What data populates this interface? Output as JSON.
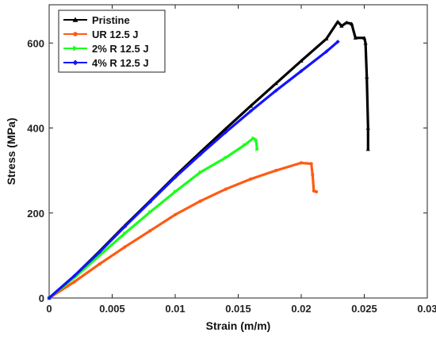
{
  "chart_data": {
    "type": "line",
    "xlabel": "Strain (m/m)",
    "ylabel": "Stress (MPa)",
    "xlim": [
      0,
      0.03
    ],
    "ylim": [
      0,
      690
    ],
    "xticks": [
      0,
      0.005,
      0.01,
      0.015,
      0.02,
      0.025,
      0.03
    ],
    "xtick_labels": [
      "0",
      "0.005",
      "0.01",
      "0.015",
      "0.02",
      "0.025",
      "0.03"
    ],
    "yticks": [
      0,
      200,
      400,
      600
    ],
    "ytick_labels": [
      "0",
      "200",
      "400",
      "600"
    ],
    "grid": false,
    "legend_position": "top-left",
    "series": [
      {
        "name": "Pristine",
        "color": "#000000",
        "marker": "triangle-up",
        "points": [
          [
            0,
            0
          ],
          [
            0.002,
            52
          ],
          [
            0.004,
            110
          ],
          [
            0.006,
            170
          ],
          [
            0.008,
            228
          ],
          [
            0.01,
            287
          ],
          [
            0.012,
            343
          ],
          [
            0.014,
            398
          ],
          [
            0.016,
            452
          ],
          [
            0.018,
            505
          ],
          [
            0.02,
            558
          ],
          [
            0.022,
            610
          ],
          [
            0.0229,
            650
          ],
          [
            0.0232,
            640
          ],
          [
            0.0236,
            648
          ],
          [
            0.024,
            645
          ],
          [
            0.0243,
            612
          ],
          [
            0.025,
            612
          ],
          [
            0.0251,
            600
          ],
          [
            0.0252,
            520
          ],
          [
            0.0253,
            400
          ],
          [
            0.0253,
            350
          ]
        ]
      },
      {
        "name": "UR 12.5 J",
        "color": "#ff5a14",
        "marker": "circle",
        "points": [
          [
            0,
            0
          ],
          [
            0.002,
            38
          ],
          [
            0.004,
            80
          ],
          [
            0.006,
            120
          ],
          [
            0.008,
            158
          ],
          [
            0.01,
            196
          ],
          [
            0.012,
            228
          ],
          [
            0.014,
            256
          ],
          [
            0.016,
            280
          ],
          [
            0.018,
            300
          ],
          [
            0.02,
            318
          ],
          [
            0.0208,
            316
          ],
          [
            0.0209,
            290
          ],
          [
            0.021,
            252
          ],
          [
            0.0212,
            250
          ]
        ]
      },
      {
        "name": "2% R 12.5 J",
        "color": "#1aff1a",
        "marker": "triangle-right",
        "points": [
          [
            0,
            0
          ],
          [
            0.002,
            48
          ],
          [
            0.004,
            100
          ],
          [
            0.006,
            152
          ],
          [
            0.008,
            202
          ],
          [
            0.01,
            250
          ],
          [
            0.012,
            296
          ],
          [
            0.014,
            330
          ],
          [
            0.0155,
            360
          ],
          [
            0.0162,
            376
          ],
          [
            0.0164,
            372
          ],
          [
            0.0165,
            350
          ]
        ]
      },
      {
        "name": "4% R 12.5 J",
        "color": "#1414ff",
        "marker": "diamond",
        "points": [
          [
            0,
            0
          ],
          [
            0.002,
            52
          ],
          [
            0.004,
            108
          ],
          [
            0.006,
            168
          ],
          [
            0.008,
            226
          ],
          [
            0.01,
            284
          ],
          [
            0.012,
            338
          ],
          [
            0.014,
            390
          ],
          [
            0.016,
            440
          ],
          [
            0.018,
            488
          ],
          [
            0.02,
            534
          ],
          [
            0.022,
            580
          ],
          [
            0.0229,
            603
          ]
        ]
      }
    ]
  }
}
